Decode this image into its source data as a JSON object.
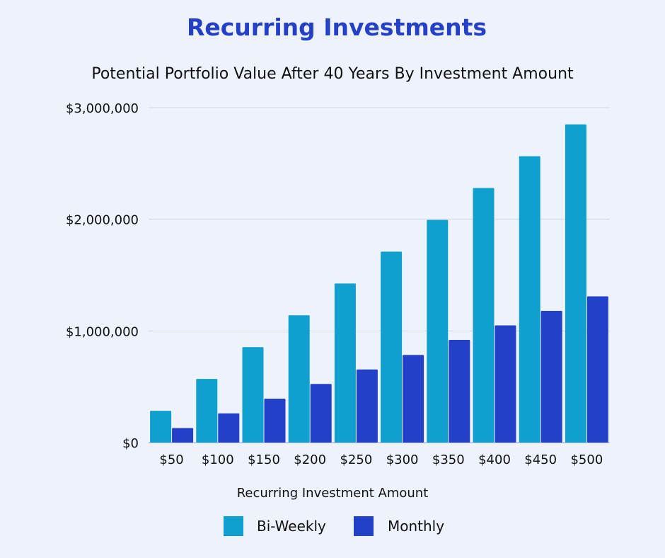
{
  "chart_data": {
    "type": "bar",
    "title": "Recurring Investments",
    "subtitle": "Potential Portfolio Value After 40 Years By Investment Amount",
    "xlabel": "Recurring Investment Amount",
    "ylabel": "",
    "categories": [
      "$50",
      "$100",
      "$150",
      "$200",
      "$250",
      "$300",
      "$350",
      "$400",
      "$450",
      "$500"
    ],
    "series": [
      {
        "name": "Bi-Weekly",
        "color": "#0fa0d0",
        "values": [
          285000,
          570000,
          855000,
          1140000,
          1425000,
          1710000,
          1995000,
          2280000,
          2565000,
          2850000
        ]
      },
      {
        "name": "Monthly",
        "color": "#2240c8",
        "values": [
          130000,
          262000,
          393000,
          525000,
          655000,
          785000,
          920000,
          1050000,
          1180000,
          1310000
        ]
      }
    ],
    "ylim": [
      0,
      3000000
    ],
    "yticks": [
      0,
      1000000,
      2000000,
      3000000
    ],
    "ytick_labels": [
      "$0",
      "$1,000,000",
      "$2,000,000",
      "$3,000,000"
    ],
    "grid": true,
    "legend_position": "bottom-center"
  }
}
